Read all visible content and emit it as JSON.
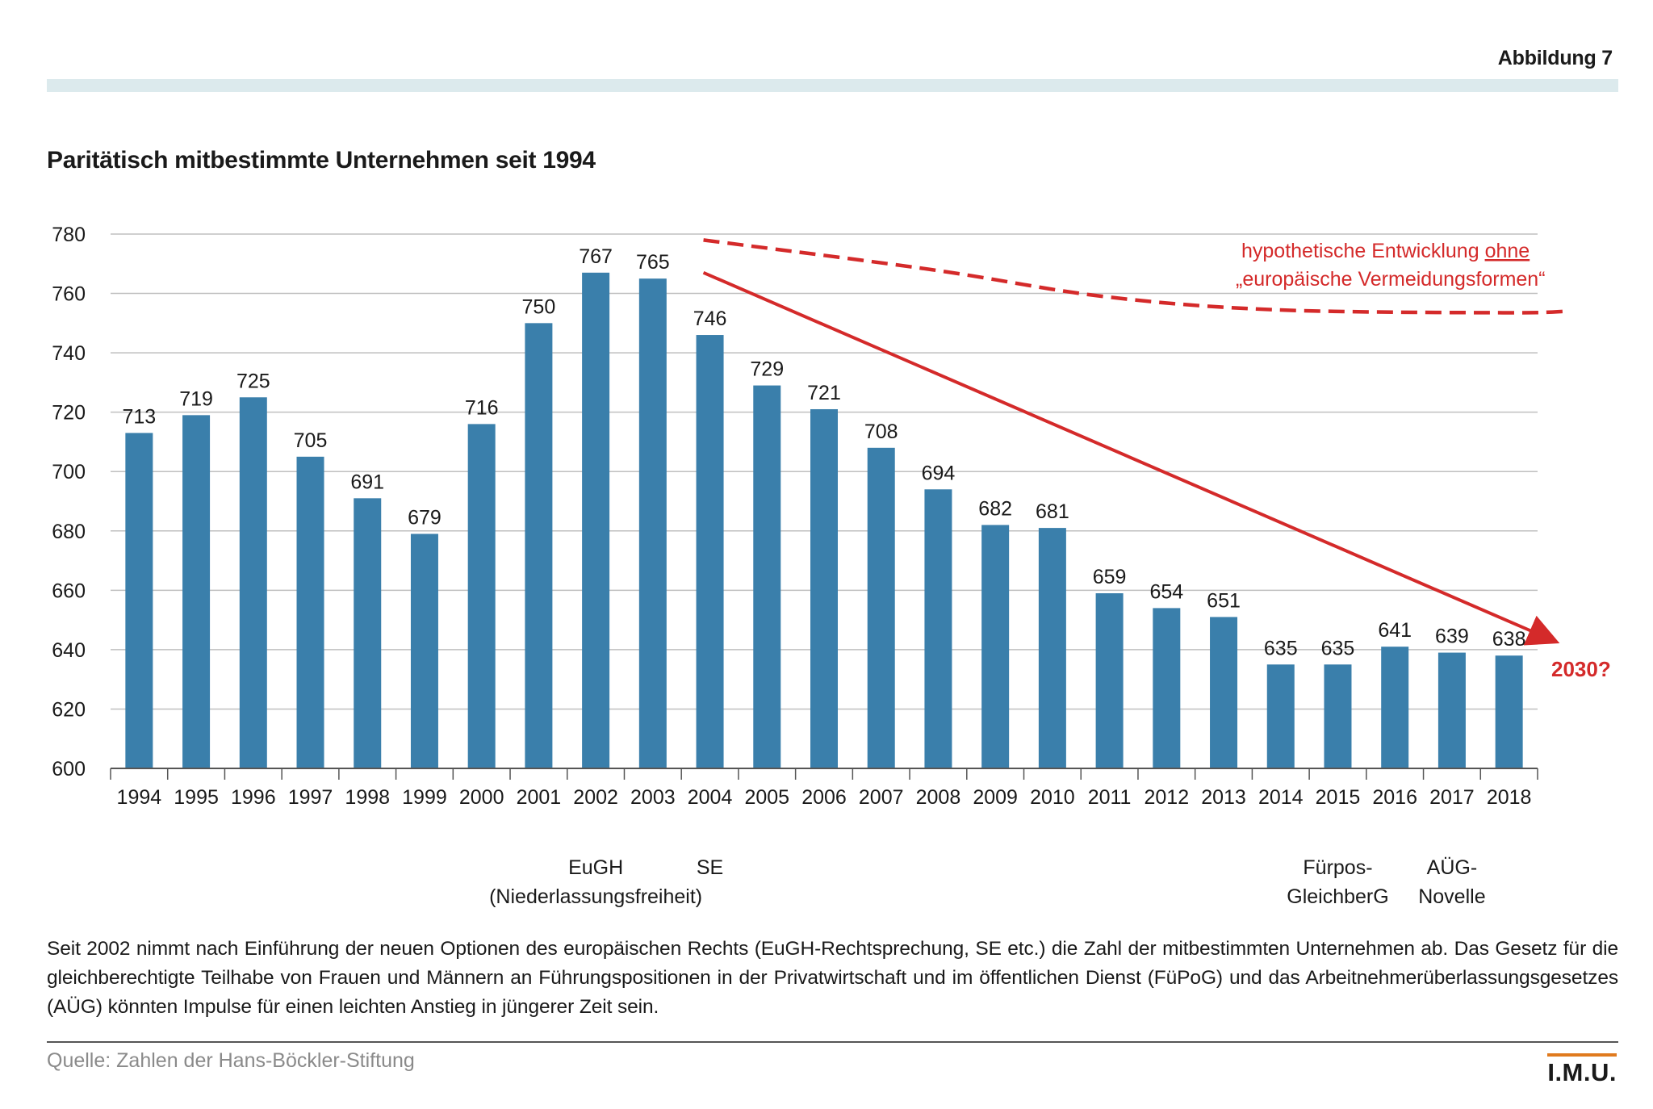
{
  "figure_label": "Abbildung 7",
  "chart_title": "Paritätisch mitbestimmte Unternehmen seit 1994",
  "caption": "Seit 2002 nimmt nach Einführung der neuen Optionen des europäischen Rechts (EuGH-Rechtsprechung, SE etc.) die Zahl der mitbestimmten Unternehmen ab. Das Gesetz für die gleichberechtigte Teilhabe von Frauen und Männern an Führungspositionen in der Privatwirtschaft und im öffentlichen Dienst (FüPoG) und das Arbeitnehmerüberlassungsgesetzes (AÜG) könnten Impulse für einen leichten Anstieg in jüngerer Zeit sein.",
  "source": "Quelle: Zahlen der Hans-Böckler-Stiftung",
  "logo_text": "I.M.U.",
  "colors": {
    "bar": "#3a7fab",
    "trend": "#d42a2a",
    "grid": "#bfbfbf",
    "accent_band": "#dceaed",
    "logo_underline": "#e07a1e"
  },
  "chart_data": {
    "type": "bar",
    "categories": [
      "1994",
      "1995",
      "1996",
      "1997",
      "1998",
      "1999",
      "2000",
      "2001",
      "2002",
      "2003",
      "2004",
      "2005",
      "2006",
      "2007",
      "2008",
      "2009",
      "2010",
      "2011",
      "2012",
      "2013",
      "2014",
      "2015",
      "2016",
      "2017",
      "2018"
    ],
    "values": [
      713,
      719,
      725,
      705,
      691,
      679,
      716,
      750,
      767,
      765,
      746,
      729,
      721,
      708,
      694,
      682,
      681,
      659,
      654,
      651,
      635,
      635,
      641,
      639,
      638
    ],
    "ylim": [
      600,
      780
    ],
    "yticks": [
      600,
      620,
      640,
      660,
      680,
      700,
      720,
      740,
      760,
      780
    ],
    "grid": "horizontal",
    "data_labels": true,
    "event_annotations": [
      {
        "year": "2002",
        "lines": [
          "EuGH",
          "(Niederlassungsfreiheit)"
        ]
      },
      {
        "year": "2004",
        "lines": [
          "SE"
        ]
      },
      {
        "year": "2015",
        "lines": [
          "Fürpos-",
          "GleichberG"
        ]
      },
      {
        "year": "2017",
        "lines": [
          "AÜG-",
          "Novelle"
        ]
      }
    ],
    "trend_line": {
      "style": "solid-arrow",
      "start": {
        "year": "2004",
        "value": 767
      },
      "end_value": 643,
      "end_label": "2030?"
    },
    "hypothetical_line": {
      "style": "dashed",
      "label_text": "hypothetische Entwicklung ",
      "label_emphasis": "ohne",
      "label_line2": "„europäische Vermeidungsformen“",
      "points": [
        {
          "year": "2004",
          "value": 778
        },
        {
          "year": "2008",
          "value": 768
        },
        {
          "year": "2011",
          "value": 759
        },
        {
          "year": "2014",
          "value": 754.5
        },
        {
          "year": "2018",
          "value": 753.5
        }
      ],
      "extends_to_value": 754
    }
  }
}
